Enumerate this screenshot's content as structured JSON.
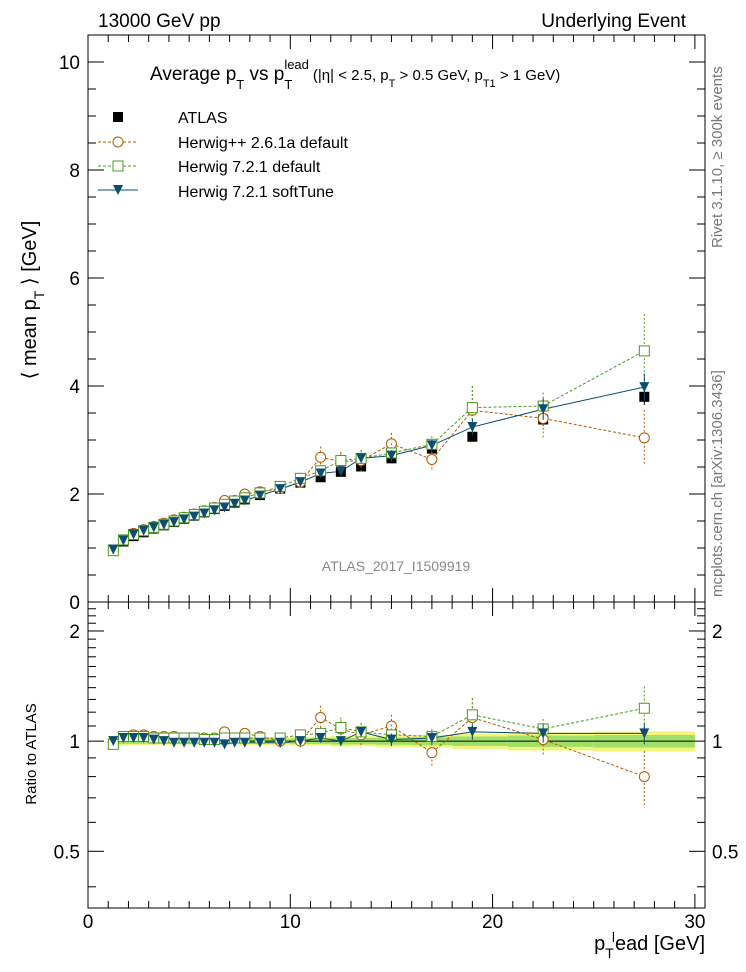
{
  "header": {
    "left": "13000 GeV pp",
    "right": "Underlying Event"
  },
  "side_text": {
    "rivet": "Rivet 3.1.10, ≥ 300k events",
    "mcplots": "mcplots.cern.ch [arXiv:1306.3436]"
  },
  "title": {
    "main": "Average p",
    "main_sub": "T",
    "vs": " vs p",
    "vs_sub": "T",
    "vs_sup": "lead",
    "cuts": "(|η| < 2.5, p",
    "cuts_sub1": "T",
    "cuts_mid": " > 0.5 GeV, p",
    "cuts_sub2": "T1",
    "cuts_end": " > 1 GeV)"
  },
  "watermark": "ATLAS_2017_I1509919",
  "y_axis": {
    "label_pre": "⟨ mean p",
    "label_sub": "T",
    "label_post": " ⟩ [GeV]",
    "ticks": [
      "0",
      "2",
      "4",
      "6",
      "8",
      "10"
    ]
  },
  "ratio_axis": {
    "label": "Ratio to ATLAS",
    "ticks": [
      "0.5",
      "1",
      "2"
    ]
  },
  "x_axis": {
    "label_pre": "p",
    "label_sub": "T",
    "label_sup": "l",
    "label_post": "ead [GeV]",
    "ticks": [
      "0",
      "10",
      "20",
      "30"
    ]
  },
  "legend": [
    {
      "label": "ATLAS",
      "color": "#000000",
      "marker": "filled-square"
    },
    {
      "label": "Herwig++ 2.6.1a default",
      "color": "#b35a00",
      "marker": "open-circle"
    },
    {
      "label": "Herwig 7.2.1 default",
      "color": "#4c9a1c",
      "marker": "open-square"
    },
    {
      "label": "Herwig 7.2.1 softTune",
      "color": "#0d4e6e",
      "marker": "filled-triangle-down"
    }
  ],
  "chart_data": {
    "type": "scatter",
    "xlim": [
      0,
      30.5
    ],
    "ylim": [
      0,
      10.5
    ],
    "ratio_ylim": [
      0.35,
      2.4
    ],
    "ratio_log": true,
    "x": [
      1.25,
      1.75,
      2.25,
      2.75,
      3.25,
      3.75,
      4.25,
      4.75,
      5.25,
      5.75,
      6.25,
      6.75,
      7.25,
      7.75,
      8.5,
      9.5,
      10.5,
      11.5,
      12.5,
      13.5,
      15.0,
      17.0,
      19.0,
      22.5,
      27.5
    ],
    "series": [
      {
        "name": "ATLAS",
        "values": [
          0.97,
          1.12,
          1.22,
          1.29,
          1.36,
          1.42,
          1.48,
          1.54,
          1.6,
          1.66,
          1.72,
          1.78,
          1.84,
          1.9,
          1.98,
          2.1,
          2.21,
          2.31,
          2.41,
          2.51,
          2.66,
          2.84,
          3.06,
          3.38,
          3.8
        ],
        "errors": [
          0.02,
          0.02,
          0.02,
          0.02,
          0.02,
          0.02,
          0.02,
          0.02,
          0.02,
          0.02,
          0.02,
          0.02,
          0.02,
          0.03,
          0.03,
          0.03,
          0.04,
          0.04,
          0.05,
          0.05,
          0.06,
          0.07,
          0.09,
          0.12,
          0.15
        ]
      },
      {
        "name": "Herwig++ 2.6.1a default",
        "values": [
          0.96,
          1.15,
          1.27,
          1.34,
          1.4,
          1.46,
          1.52,
          1.57,
          1.63,
          1.69,
          1.75,
          1.88,
          1.88,
          2.0,
          2.04,
          2.1,
          2.22,
          2.68,
          2.6,
          2.62,
          2.93,
          2.64,
          3.55,
          3.4,
          3.04
        ],
        "errors": [
          0.01,
          0.01,
          0.01,
          0.01,
          0.02,
          0.02,
          0.02,
          0.02,
          0.03,
          0.03,
          0.03,
          0.04,
          0.05,
          0.05,
          0.06,
          0.08,
          0.1,
          0.2,
          0.18,
          0.2,
          0.2,
          0.22,
          0.45,
          0.35,
          0.52
        ],
        "ratio": [
          0.99,
          1.03,
          1.04,
          1.04,
          1.03,
          1.03,
          1.03,
          1.02,
          1.02,
          1.02,
          1.02,
          1.06,
          1.02,
          1.05,
          1.03,
          1.0,
          1.0,
          1.16,
          1.08,
          1.04,
          1.1,
          0.93,
          1.16,
          1.01,
          0.8
        ],
        "ratio_errors": [
          0.01,
          0.01,
          0.01,
          0.01,
          0.01,
          0.01,
          0.01,
          0.01,
          0.02,
          0.02,
          0.02,
          0.02,
          0.03,
          0.03,
          0.03,
          0.04,
          0.05,
          0.09,
          0.08,
          0.08,
          0.08,
          0.08,
          0.15,
          0.1,
          0.14
        ]
      },
      {
        "name": "Herwig 7.2.1 default",
        "values": [
          0.95,
          1.15,
          1.25,
          1.32,
          1.38,
          1.44,
          1.5,
          1.56,
          1.62,
          1.68,
          1.74,
          1.81,
          1.87,
          1.93,
          2.02,
          2.14,
          2.29,
          2.43,
          2.62,
          2.66,
          2.76,
          2.92,
          3.6,
          3.63,
          4.65
        ],
        "errors": [
          0.01,
          0.01,
          0.01,
          0.01,
          0.02,
          0.02,
          0.02,
          0.02,
          0.02,
          0.03,
          0.03,
          0.03,
          0.04,
          0.04,
          0.05,
          0.06,
          0.08,
          0.1,
          0.12,
          0.15,
          0.18,
          0.15,
          0.4,
          0.25,
          0.68
        ],
        "ratio": [
          0.98,
          1.03,
          1.03,
          1.03,
          1.02,
          1.02,
          1.02,
          1.02,
          1.02,
          1.01,
          1.01,
          1.02,
          1.02,
          1.02,
          1.02,
          1.02,
          1.04,
          1.05,
          1.09,
          1.06,
          1.04,
          1.03,
          1.18,
          1.08,
          1.23
        ],
        "ratio_errors": [
          0.01,
          0.01,
          0.01,
          0.01,
          0.01,
          0.01,
          0.01,
          0.01,
          0.01,
          0.01,
          0.01,
          0.01,
          0.02,
          0.02,
          0.02,
          0.03,
          0.03,
          0.04,
          0.05,
          0.06,
          0.07,
          0.05,
          0.13,
          0.07,
          0.18
        ]
      },
      {
        "name": "Herwig 7.2.1 softTune",
        "values": [
          0.97,
          1.14,
          1.25,
          1.32,
          1.38,
          1.43,
          1.48,
          1.53,
          1.58,
          1.64,
          1.7,
          1.75,
          1.82,
          1.88,
          1.97,
          2.09,
          2.22,
          2.38,
          2.42,
          2.66,
          2.71,
          2.9,
          3.24,
          3.57,
          3.98
        ],
        "errors": [
          0.01,
          0.01,
          0.01,
          0.01,
          0.01,
          0.01,
          0.01,
          0.01,
          0.02,
          0.02,
          0.02,
          0.02,
          0.03,
          0.03,
          0.03,
          0.04,
          0.05,
          0.06,
          0.07,
          0.08,
          0.1,
          0.1,
          0.15,
          0.2,
          0.25
        ],
        "ratio": [
          1.0,
          1.02,
          1.02,
          1.02,
          1.01,
          1.0,
          0.99,
          0.99,
          0.99,
          0.99,
          0.99,
          0.98,
          0.99,
          0.99,
          0.99,
          0.99,
          1.0,
          1.02,
          1.0,
          1.06,
          1.01,
          1.02,
          1.06,
          1.05,
          1.05
        ],
        "ratio_errors": [
          0.01,
          0.01,
          0.01,
          0.01,
          0.01,
          0.01,
          0.01,
          0.01,
          0.01,
          0.01,
          0.01,
          0.01,
          0.01,
          0.01,
          0.02,
          0.02,
          0.02,
          0.03,
          0.03,
          0.03,
          0.04,
          0.04,
          0.05,
          0.06,
          0.07
        ]
      }
    ]
  }
}
